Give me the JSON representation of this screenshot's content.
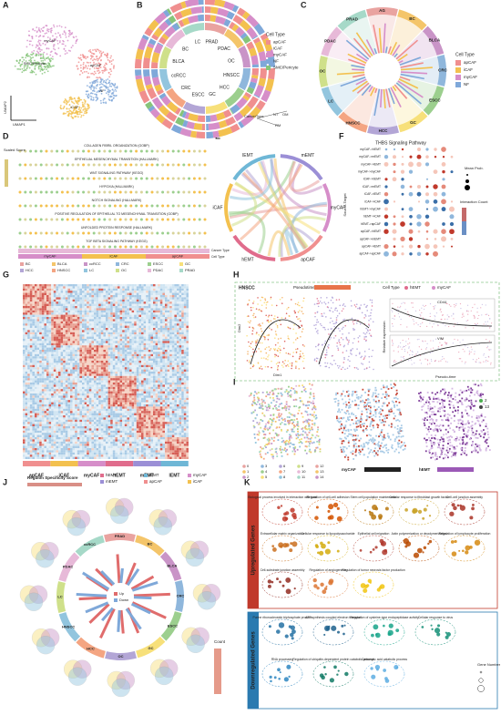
{
  "panel_letters": [
    "A",
    "B",
    "C",
    "D",
    "E",
    "F",
    "G",
    "H",
    "I",
    "J",
    "K"
  ],
  "panel_a": {
    "x_axis": "UMAP1",
    "y_axis": "UMAP2",
    "clusters": [
      "myCAF",
      "apCAF",
      "SMC/Pericyte",
      "NF",
      "iCAF"
    ]
  },
  "panel_b": {
    "legend_title": "Cell Type",
    "legend": [
      "apCAF",
      "iCAF",
      "myCAF",
      "NF",
      "SMC/Pericyte"
    ],
    "sectors": [
      "PRAD",
      "PDAC",
      "OC",
      "HNSCC",
      "HCC",
      "GC",
      "ESCC",
      "CRC",
      "ccRCC",
      "BLCA",
      "BC",
      "LC"
    ],
    "ring_labels": [
      "CancerType",
      "NT",
      "OM",
      "RM"
    ]
  },
  "panel_c": {
    "legend_title": "Cell Type",
    "legend": [
      "apCAF",
      "iCAF",
      "myCAF",
      "NF"
    ],
    "sectors": [
      "AG",
      "BC",
      "BLCA",
      "CRC",
      "ESCC",
      "GC",
      "HCC",
      "HNSCC",
      "LC",
      "OC",
      "PDAC",
      "PRAD"
    ]
  },
  "panel_d": {
    "y_axis": "Scaled Score",
    "pathways": [
      "COLLAGEN FIBRIL ORGANIZATION (GOBP)",
      "EPITHELIAL MESENCHYMAL TRANSITION (HALLMARK)",
      "WNT SIGNALING PATHWAY (KEGG)",
      "HYPOXIA (HALLMARK)",
      "NOTCH SIGNALING (HALLMARK)",
      "POSITIVE REGULATION OF EPITHELIAL TO MESENCHYMAL TRANSITION (GOBP)",
      "UNFOLDED PROTEIN RESPONSE (HALLMARK)",
      "TGF BETA SIGNALING PATHWAY (KEGG)"
    ],
    "cell_types": [
      "myCAF",
      "iCAF",
      "apCAF"
    ],
    "cancer_type_label": "Cancer Type",
    "cell_type_label": "Cell Type",
    "cancer_types": [
      "BC",
      "BLCA",
      "ccRCC",
      "CRC",
      "ESCC",
      "GC",
      "HCC",
      "HNSCC",
      "LC",
      "OC",
      "PDAC",
      "PRAD"
    ]
  },
  "panel_e": {
    "groups": [
      "mEMT",
      "myCAF",
      "apCAF",
      "hEMT",
      "iCAF",
      "lEMT"
    ]
  },
  "panel_f": {
    "title": "THBS Signaling Pathway",
    "y_axis": "Source-Target",
    "size_legend": "Mean Prob.",
    "color_legend": "Interaction Count",
    "pairs": [
      "myCAF->hEMT",
      "myCAF->mEMT",
      "myCAF->lEMT",
      "myCAF->myCAF",
      "iCAF->hEMT",
      "iCAF->mEMT",
      "iCAF->lEMT",
      "iCAF->iCAF",
      "hEMT->myCAF",
      "hEMT->iCAF",
      "hEMT->apCAF",
      "apCAF->hEMT",
      "apCAF->mEMT",
      "apCAF->lEMT",
      "apCAF->apCAF"
    ]
  },
  "panel_g": {
    "groups": [
      "apCAF",
      "iCAF",
      "myCAF",
      "hEMT",
      "mEMT",
      "lEMT"
    ],
    "legend_title": "Regulon Specificity Score",
    "legend": [
      "hEMT",
      "mEMT",
      "lEMT",
      "apCAF",
      "myCAF",
      "iCAF"
    ]
  },
  "panel_h": {
    "dataset": "HNSCC",
    "color_title": "Pseudotime",
    "legend_title": "Cell Type",
    "legend": [
      "hEMT",
      "myCAF"
    ],
    "dim_x": "Dim1",
    "dim_y": "Dim2",
    "genes": [
      "CD44",
      "VIM"
    ],
    "x_axis": "Pseudo-time",
    "y_axis": "Relative expression"
  },
  "panel_i": {
    "clusters": [
      "0",
      "1",
      "2",
      "3",
      "4",
      "5",
      "6",
      "7",
      "8",
      "9",
      "10",
      "11",
      "12",
      "13",
      "14"
    ],
    "scales": [
      "myCAF",
      "hEMT"
    ],
    "highlight": [
      "2",
      "13"
    ]
  },
  "panel_j": {
    "sectors": [
      "PRAD",
      "BC",
      "BLCA",
      "CRC",
      "ESCC",
      "GC",
      "OC",
      "HCC",
      "HNSCC",
      "LC",
      "PDAC",
      "ccRCC"
    ],
    "bar_legend": [
      "Up",
      "Down"
    ],
    "count_title": "Count"
  },
  "panel_k": {
    "up_title": "Upregulated Genes",
    "down_title": "Downregulated Genes",
    "size_title": "Gene Number",
    "up_terms": [
      "Biological process involved in interaction with host",
      "Regulation of cell-cell adhesion",
      "Stem cell population maintenance",
      "Cellular response to fibroblast growth factor",
      "Cell-cell junction assembly",
      "Extracellular matrix organization",
      "Cellular response to lipopolysaccharide",
      "Epithelial cell migration",
      "Actin polymerization or depolymerization",
      "Regulation of lymphocyte proliferation",
      "Cell-substrate junction assembly",
      "Regulation of angiogenesis",
      "Regulation of tumor necrosis factor production"
    ],
    "down_terms": [
      "Purine ribonucleoside triphosphate process",
      "ATP synthesis coupled electron transport",
      "Regulation of cysteine-type endopeptidase activity",
      "Cellular response to virus",
      "RNA processing",
      "Regulation of ubiquitin-dependent protein catabolic process",
      "Carboxylic acid catabolic process"
    ]
  }
}
